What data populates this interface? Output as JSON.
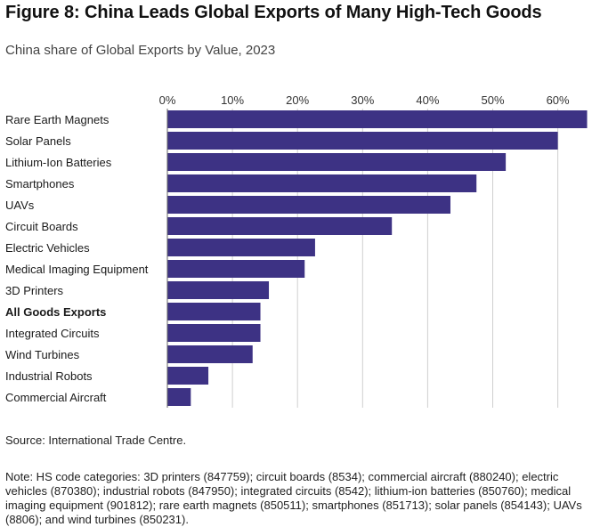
{
  "header": {
    "title": "Figure 8: China Leads Global Exports of Many High-Tech Goods",
    "subtitle": "China share of Global Exports by Value, 2023"
  },
  "chart_data": {
    "type": "bar",
    "orientation": "horizontal",
    "ylabel": "",
    "xlabel": "",
    "x_ticks": [
      "0%",
      "10%",
      "20%",
      "30%",
      "40%",
      "50%",
      "60%"
    ],
    "xlim": [
      0,
      65
    ],
    "grid": true,
    "bar_color": "#3d3284",
    "categories": [
      "Rare Earth Magnets",
      "Solar Panels",
      "Lithium-Ion Batteries",
      "Smartphones",
      "UAVs",
      "Circuit Boards",
      "Electric Vehicles",
      "Medical Imaging Equipment",
      "3D Printers",
      "All Goods Exports",
      "Integrated Circuits",
      "Wind Turbines",
      "Industrial Robots",
      "Commercial Aircraft"
    ],
    "bold_categories": [
      "All Goods Exports"
    ],
    "values": [
      64.5,
      60,
      52,
      47.5,
      43.5,
      34.5,
      22.7,
      21.1,
      15.6,
      14.3,
      14.3,
      13.1,
      6.3,
      3.6
    ]
  },
  "footer": {
    "source": "Source: International Trade Centre.",
    "note": "Note: HS code categories: 3D printers (847759); circuit boards (8534); commercial aircraft (880240); electric vehicles (870380); industrial robots (847950); integrated circuits (8542); lithium-ion batteries (850760); medical imaging equipment (901812); rare earth magnets (850511); smartphones (851713); solar panels (854143); UAVs (8806); and wind turbines (850231)."
  }
}
